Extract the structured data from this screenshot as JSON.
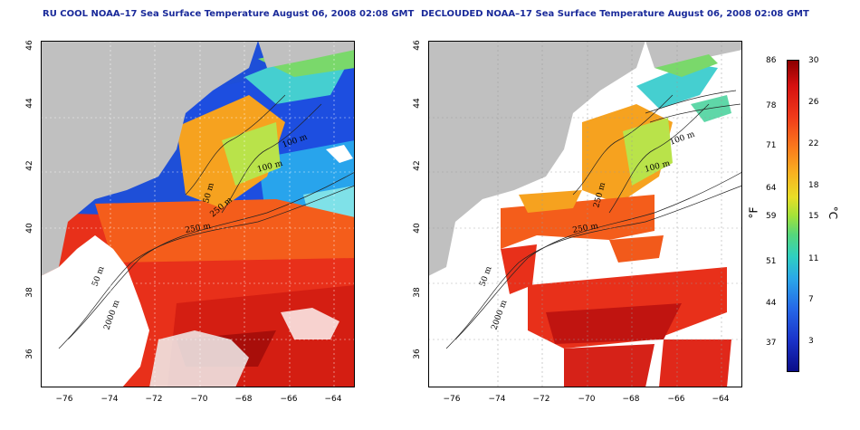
{
  "left_panel": {
    "title": "RU COOL NOAA–17 Sea Surface Temperature August 06, 2008 02:08 GMT",
    "contour_labels": [
      "100 m",
      "100 m",
      "50 m",
      "250 m",
      "250 m",
      "50 m",
      "2000 m"
    ]
  },
  "right_panel": {
    "title": "DECLOUDED NOAA–17 Sea Surface Temperature August 06, 2008 02:08 GMT",
    "contour_labels": [
      "100 m",
      "100 m",
      "250 m",
      "250 m",
      "50 m",
      "2000 m"
    ]
  },
  "axes": {
    "lat_ticks": [
      "46",
      "44",
      "42",
      "40",
      "38",
      "36"
    ],
    "lon_ticks": [
      "−76",
      "−74",
      "−72",
      "−70",
      "−68",
      "−66",
      "−64"
    ]
  },
  "colorbar": {
    "fahrenheit_ticks": [
      "86",
      "78",
      "71",
      "64",
      "59",
      "51",
      "44",
      "37"
    ],
    "celsius_ticks": [
      "30",
      "26",
      "22",
      "18",
      "15",
      "11",
      "7",
      "3"
    ],
    "fahrenheit_unit": "°F",
    "celsius_unit": "°C"
  },
  "colors": {
    "title": "#1a2a9a",
    "land": "#c0c0c0",
    "cloud": "#ffffff"
  }
}
